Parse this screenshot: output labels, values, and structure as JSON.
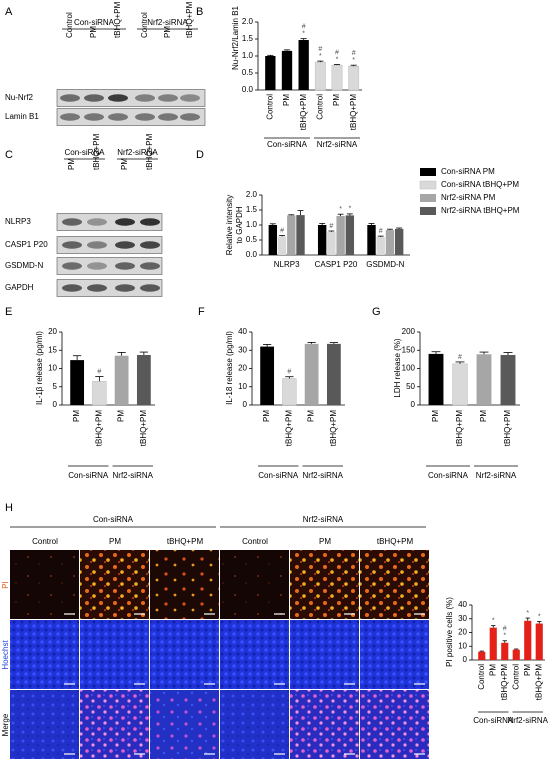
{
  "panels": [
    "A",
    "B",
    "C",
    "D",
    "E",
    "F",
    "G",
    "H"
  ],
  "blot_a": {
    "groups": [
      "Con-siRNA",
      "Nrf2-siRNA"
    ],
    "lanes": [
      "Control",
      "PM",
      "tBHQ+PM",
      "Control",
      "PM",
      "tBHQ+PM"
    ],
    "rows": [
      "Nu-Nrf2",
      "Lamin B1"
    ]
  },
  "blot_c": {
    "groups": [
      "Con-siRNA",
      "Nrf2-siRNA"
    ],
    "lanes": [
      "PM",
      "tBHQ+PM",
      "PM",
      "tBHQ+PM"
    ],
    "rows": [
      "NLRP3",
      "CASP1 P20",
      "GSDMD-N",
      "GAPDH"
    ]
  },
  "micrograph_h": {
    "groups": [
      "Con-siRNA",
      "Nrf2-siRNA"
    ],
    "columns": [
      "Control",
      "PM",
      "tBHQ+PM",
      "Control",
      "PM",
      "tBHQ+PM"
    ],
    "rows": [
      "PI",
      "Hoechst",
      "Merge"
    ]
  },
  "chart_data": [
    {
      "type": "bar",
      "ylabel": [
        "Nu-Nrf2/Lamin B1"
      ],
      "categories": [
        "Control",
        "PM",
        "tBHQ+PM",
        "Control",
        "PM",
        "tBHQ+PM"
      ],
      "groups": [
        "Con-siRNA",
        "Nrf2-siRNA"
      ],
      "values": [
        1.0,
        1.15,
        1.47,
        0.82,
        0.73,
        0.7
      ],
      "errors": [
        0.02,
        0.03,
        0.04,
        0.03,
        0.02,
        0.03
      ],
      "colors": [
        "#000000",
        "#000000",
        "#000000",
        "#d9d9d9",
        "#d9d9d9",
        "#d9d9d9"
      ],
      "sig": [
        null,
        null,
        [
          "*",
          "#"
        ],
        [
          "*",
          "#"
        ],
        [
          "*",
          "#"
        ],
        [
          "*",
          "#"
        ]
      ],
      "ylim": [
        0,
        2
      ],
      "yticks": [
        {
          "value": 0,
          "label": "0.0"
        },
        0.5,
        {
          "value": 1,
          "label": "1.0"
        },
        1.5,
        {
          "value": 2,
          "label": "2.0"
        }
      ]
    },
    {
      "type": "grouped_bar",
      "ylabel": [
        "Relative intensity",
        "to GAPDH"
      ],
      "categories": [
        "NLRP3",
        "CASP1 P20",
        "GSDMD-N"
      ],
      "series": [
        {
          "name": "Con-siRNA PM",
          "color": "#000000",
          "values": [
            1.0,
            1.0,
            1.0
          ],
          "errors": [
            0.04,
            0.05,
            0.05
          ]
        },
        {
          "name": "Con-siRNA tBHQ+PM",
          "color": "#d9d9d9",
          "values": [
            0.62,
            0.77,
            0.6
          ],
          "errors": [
            0.03,
            0.03,
            0.03
          ],
          "sig": [
            [
              "#"
            ],
            [
              "#"
            ],
            [
              "#"
            ]
          ]
        },
        {
          "name": "Nrf2-siRNA PM",
          "color": "#a6a6a6",
          "values": [
            1.32,
            1.3,
            0.83
          ],
          "errors": [
            0.02,
            0.06,
            0.03
          ],
          "sig": [
            null,
            [
              "*"
            ],
            null
          ]
        },
        {
          "name": "Nrf2-siRNA tBHQ+PM",
          "color": "#595959",
          "values": [
            1.33,
            1.32,
            0.87
          ],
          "errors": [
            0.15,
            0.05,
            0.03
          ],
          "sig": [
            null,
            [
              "*"
            ],
            null
          ]
        }
      ],
      "legend": "right",
      "ylim": [
        0,
        2
      ],
      "yticks": [
        {
          "value": 0,
          "label": "0.0"
        },
        0.5,
        {
          "value": 1,
          "label": "1.0"
        },
        1.5,
        {
          "value": 2,
          "label": "2.0"
        }
      ]
    },
    {
      "type": "bar",
      "ylabel": [
        "IL-1β release (pg/ml)"
      ],
      "categories": [
        "PM",
        "tBHQ+PM",
        "PM",
        "tBHQ+PM"
      ],
      "groups": [
        "Con-siRNA",
        "Nrf2-siRNA"
      ],
      "values": [
        12.3,
        6.5,
        13.5,
        13.7
      ],
      "errors": [
        1.2,
        1.3,
        0.9,
        0.8
      ],
      "colors": [
        "#000000",
        "#d9d9d9",
        "#a6a6a6",
        "#595959"
      ],
      "sig": [
        null,
        [
          "#"
        ],
        null,
        null
      ],
      "ylim": [
        0,
        20
      ],
      "yticks": [
        0,
        5,
        10,
        15,
        20
      ]
    },
    {
      "type": "bar",
      "ylabel": [
        "IL-18 release (pg/ml)"
      ],
      "categories": [
        "PM",
        "tBHQ+PM",
        "PM",
        "tBHQ+PM"
      ],
      "groups": [
        "Con-siRNA",
        "Nrf2-siRNA"
      ],
      "values": [
        32,
        14.5,
        33.5,
        33.5
      ],
      "errors": [
        1.2,
        1.0,
        0.8,
        0.7
      ],
      "colors": [
        "#000000",
        "#d9d9d9",
        "#a6a6a6",
        "#595959"
      ],
      "sig": [
        null,
        [
          "#"
        ],
        null,
        null
      ],
      "ylim": [
        0,
        40
      ],
      "yticks": [
        0,
        10,
        20,
        30,
        40
      ]
    },
    {
      "type": "bar",
      "ylabel": [
        "LDH release (%)"
      ],
      "categories": [
        "PM",
        "tBHQ+PM",
        "PM",
        "tBHQ+PM"
      ],
      "groups": [
        "Con-siRNA",
        "Nrf2-siRNA"
      ],
      "values": [
        140,
        113,
        139,
        137
      ],
      "errors": [
        6,
        5,
        6,
        7
      ],
      "colors": [
        "#000000",
        "#d9d9d9",
        "#a6a6a6",
        "#595959"
      ],
      "sig": [
        null,
        [
          "#"
        ],
        null,
        null
      ],
      "ylim": [
        0,
        200
      ],
      "yticks": [
        0,
        50,
        100,
        150,
        200
      ]
    },
    {
      "type": "bar",
      "ylabel": [
        "PI positive cells (%)"
      ],
      "categories": [
        "Control",
        "PM",
        "tBHQ+PM",
        "Control",
        "PM",
        "tBHQ+PM"
      ],
      "groups": [
        "Con-siRNA",
        "Nrf2-siRNA"
      ],
      "values": [
        6,
        23.5,
        12.5,
        7.5,
        28.5,
        26.5
      ],
      "errors": [
        0.5,
        1.5,
        1.5,
        0.5,
        2,
        1.5
      ],
      "colors": [
        "#e32119",
        "#e32119",
        "#e32119",
        "#e32119",
        "#e32119",
        "#e32119"
      ],
      "sig": [
        null,
        [
          "*"
        ],
        [
          "*",
          "#"
        ],
        null,
        [
          "*"
        ],
        [
          "*"
        ]
      ],
      "ylim": [
        0,
        40
      ],
      "yticks": [
        0,
        10,
        20,
        30,
        40
      ]
    }
  ]
}
